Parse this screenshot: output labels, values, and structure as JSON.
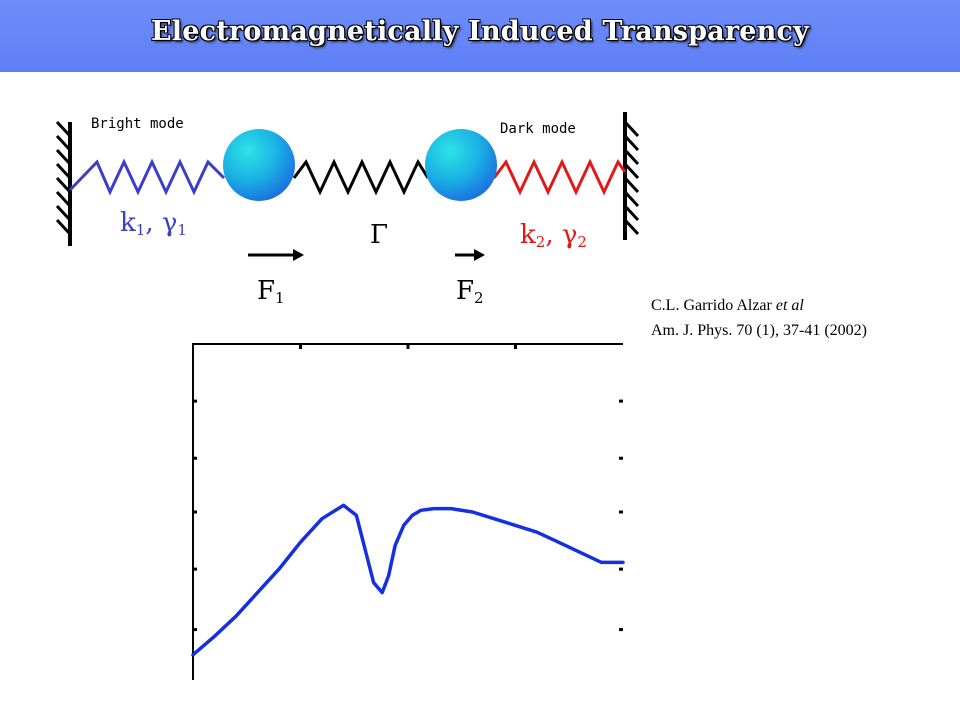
{
  "slide": {
    "title": "Electromagnetically Induced Transparency"
  },
  "diagram": {
    "bright_mode_label": "Bright mode",
    "dark_mode_label": "Dark mode",
    "left_spring": {
      "k": "k",
      "k_sub": "1",
      "gamma": "γ",
      "gamma_sub": "1",
      "separator": ", "
    },
    "coupling_label": "Γ",
    "right_spring": {
      "k": "k",
      "k_sub": "2",
      "gamma": "γ",
      "gamma_sub": "2",
      "separator": ", "
    },
    "force_1": {
      "symbol": "F",
      "sub": "1"
    },
    "force_2": {
      "symbol": "F",
      "sub": "2"
    }
  },
  "colors": {
    "header": "#6283f6",
    "bright_spring": "#3a3ec8",
    "coupling_spring": "#000000",
    "dark_spring": "#e01818",
    "mass": "#1a9fe0",
    "curve": "#1530e0"
  },
  "citation": {
    "authors": "C.L. Garrido Alzar ",
    "etal": "et al",
    "reference": "Am. J. Phys. 70 (1),  37-41 (2002)"
  },
  "chart_data": {
    "type": "line",
    "title": "",
    "xlabel": "",
    "ylabel": "",
    "xlim": [
      0,
      1
    ],
    "ylim": [
      0,
      1
    ],
    "grid": false,
    "x_ticks": [
      0.25,
      0.5,
      0.75
    ],
    "y_ticks": [
      0.15,
      0.33,
      0.5,
      0.66,
      0.83
    ],
    "series": [
      {
        "x": [
          0,
          0.05,
          0.1,
          0.15,
          0.2,
          0.25,
          0.3,
          0.35,
          0.38,
          0.4,
          0.42,
          0.44,
          0.455,
          0.47,
          0.49,
          0.51,
          0.53,
          0.56,
          0.6,
          0.65,
          0.7,
          0.75,
          0.8,
          0.85,
          0.9,
          0.95,
          1.0
        ],
        "values": [
          0.075,
          0.13,
          0.19,
          0.26,
          0.33,
          0.41,
          0.48,
          0.52,
          0.49,
          0.39,
          0.29,
          0.26,
          0.31,
          0.4,
          0.46,
          0.49,
          0.505,
          0.51,
          0.51,
          0.5,
          0.48,
          0.46,
          0.44,
          0.41,
          0.38,
          0.35,
          0.35
        ]
      }
    ]
  }
}
